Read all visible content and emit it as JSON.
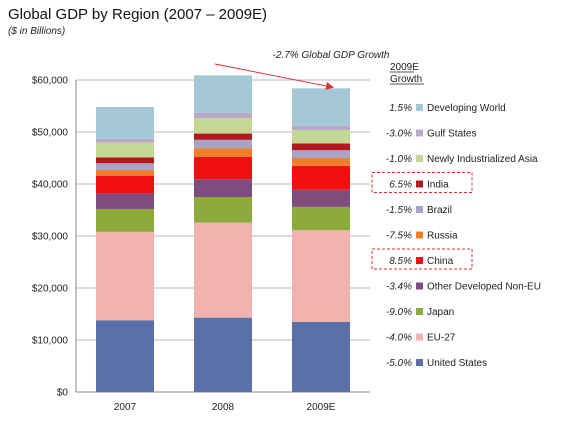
{
  "chart_data": {
    "type": "bar",
    "stacked": true,
    "title": "Global GDP by Region (2007 – 2009E)",
    "subtitle": "($ in Billions)",
    "categories": [
      "2007",
      "2008",
      "2009E"
    ],
    "ylim": [
      0,
      60000
    ],
    "yticks": [
      "$0",
      "$10,000",
      "$20,000",
      "$30,000",
      "$40,000",
      "$50,000",
      "$60,000"
    ],
    "grid": true,
    "legend_position": "right",
    "growth_header": [
      "2009E",
      "Growth"
    ],
    "annotation": "-2.7% Global GDP Growth",
    "series": [
      {
        "name": "United States",
        "color": "#5B6FA8",
        "growth": "-5.0%",
        "values": [
          13800,
          14300,
          13500
        ],
        "highlight": false
      },
      {
        "name": "EU-27",
        "color": "#F2B3AE",
        "growth": "-4.0%",
        "values": [
          17000,
          18300,
          17600
        ],
        "highlight": false
      },
      {
        "name": "Japan",
        "color": "#8DAA3C",
        "growth": "-9.0%",
        "values": [
          4400,
          4900,
          4500
        ],
        "highlight": false
      },
      {
        "name": "Other Developed Non-EU",
        "color": "#7E4C7E",
        "growth": "-3.4%",
        "values": [
          3000,
          3400,
          3300
        ],
        "highlight": false
      },
      {
        "name": "China",
        "color": "#F01010",
        "growth": "8.5%",
        "values": [
          3400,
          4300,
          4600
        ],
        "highlight": true
      },
      {
        "name": "Russia",
        "color": "#F07D2A",
        "growth": "-7.5%",
        "values": [
          1100,
          1700,
          1500
        ],
        "highlight": false
      },
      {
        "name": "Brazil",
        "color": "#A7A4C8",
        "growth": "-1.5%",
        "values": [
          1300,
          1600,
          1500
        ],
        "highlight": false
      },
      {
        "name": "India",
        "color": "#B5171F",
        "growth": "6.5%",
        "values": [
          1100,
          1200,
          1300
        ],
        "highlight": true
      },
      {
        "name": "Newly Industrialized Asia",
        "color": "#C4D896",
        "growth": "-1.0%",
        "values": [
          2900,
          3000,
          2600
        ],
        "highlight": false
      },
      {
        "name": "Gulf States",
        "color": "#B9A8C8",
        "growth": "-3.0%",
        "values": [
          700,
          1000,
          800
        ],
        "highlight": false
      },
      {
        "name": "Developing World",
        "color": "#A5C8D6",
        "growth": "1.5%",
        "values": [
          6100,
          7200,
          7200
        ],
        "highlight": false
      }
    ]
  }
}
